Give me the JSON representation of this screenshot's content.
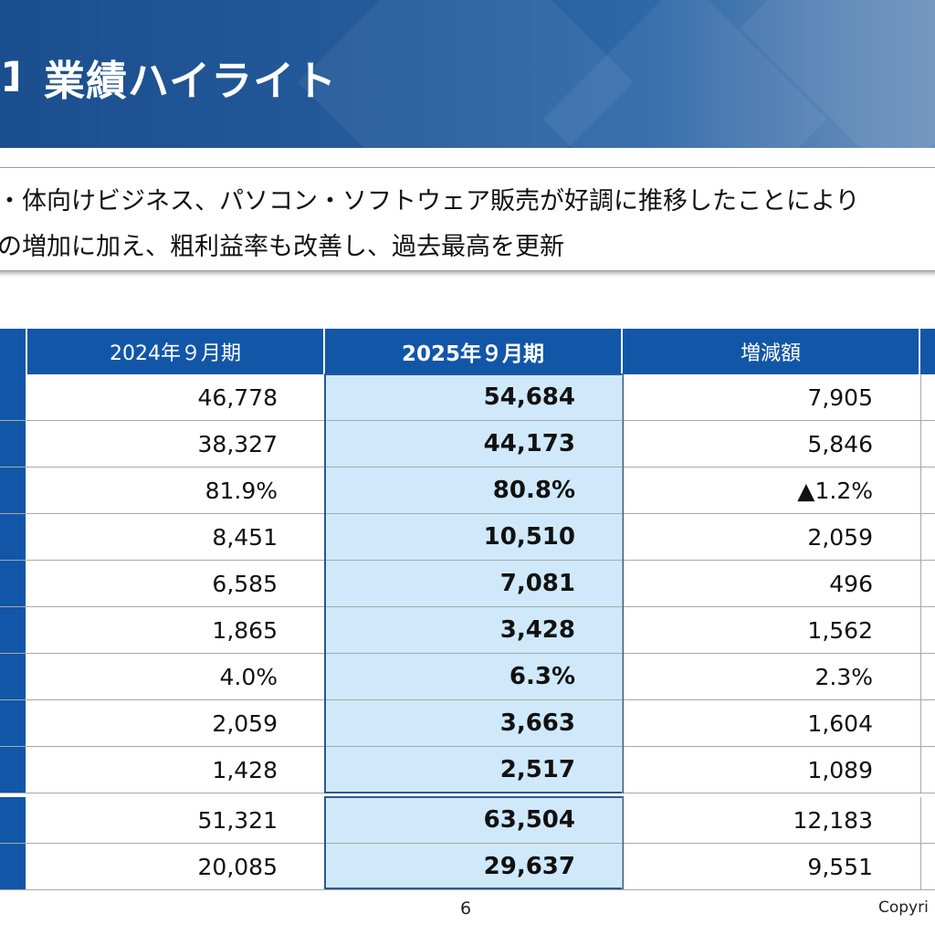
{
  "banner": {
    "number": "1",
    "title": "業績ハイライト"
  },
  "summary": {
    "line1": "・体向けビジネス、パソコン・ソフトウェア販売が好調に推移したことにより",
    "line2": "の増加に加え、粗利益率も改善し、過去最高を更新"
  },
  "table": {
    "headers": [
      "2024年９月期",
      "2025年９月期",
      "増減額"
    ],
    "rows": [
      {
        "v2024": "46,778",
        "v2025": "54,684",
        "diff": "7,905"
      },
      {
        "v2024": "38,327",
        "v2025": "44,173",
        "diff": "5,846"
      },
      {
        "v2024": "81.9%",
        "v2025": "80.8%",
        "diff": "▲1.2%"
      },
      {
        "v2024": "8,451",
        "v2025": "10,510",
        "diff": "2,059"
      },
      {
        "v2024": "6,585",
        "v2025": "7,081",
        "diff": "496"
      },
      {
        "v2024": "1,865",
        "v2025": "3,428",
        "diff": "1,562"
      },
      {
        "v2024": "4.0%",
        "v2025": "6.3%",
        "diff": "2.3%"
      },
      {
        "v2024": "2,059",
        "v2025": "3,663",
        "diff": "1,604"
      },
      {
        "v2024": "1,428",
        "v2025": "2,517",
        "diff": "1,089"
      },
      {
        "v2024": "51,321",
        "v2025": "63,504",
        "diff": "12,183"
      },
      {
        "v2024": "20,085",
        "v2025": "29,637",
        "diff": "9,551"
      }
    ]
  },
  "footer": {
    "page_number": "6",
    "copyright": "Copyri"
  },
  "colors": {
    "header_blue": "#1256a8",
    "highlight_fill": "#cfe9fb",
    "highlight_border": "#2a5990"
  }
}
